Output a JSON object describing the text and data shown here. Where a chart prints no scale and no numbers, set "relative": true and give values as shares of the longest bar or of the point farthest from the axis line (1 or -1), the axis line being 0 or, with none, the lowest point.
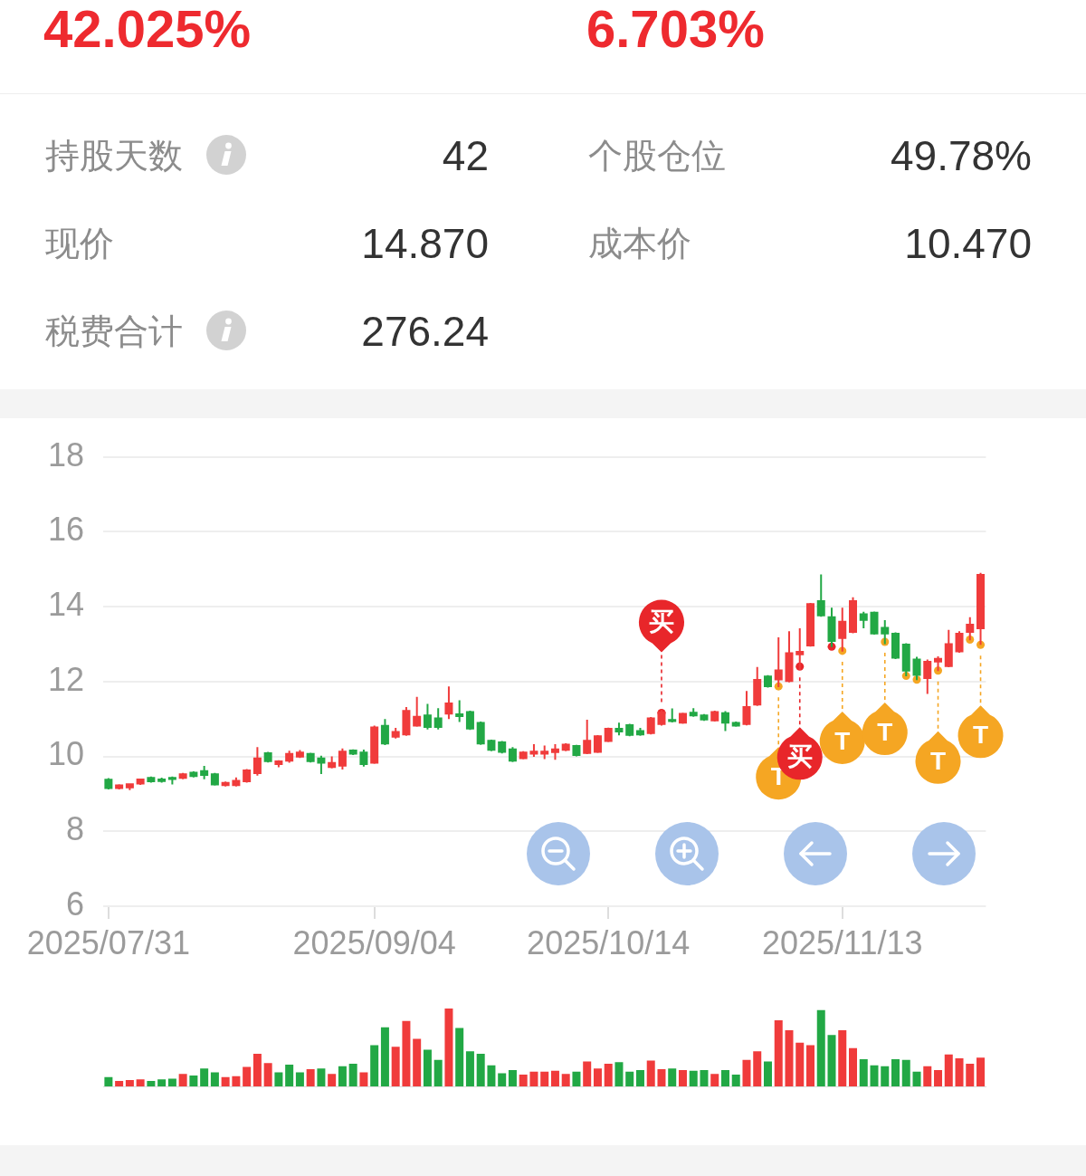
{
  "chart_data": [
    {
      "type": "other",
      "annotations": [
        "42.025%",
        "6.703%",
        "持股天数",
        "42",
        "个股仓位",
        "49.78%",
        "现价",
        "14.870",
        "成本价",
        "10.470",
        "税费合计",
        "276.24"
      ]
    },
    {
      "type": "candlestick",
      "categories": [
        "2025/07/31",
        null,
        null,
        null,
        null,
        null,
        null,
        null,
        null,
        null,
        null,
        null,
        null,
        null,
        null,
        null,
        null,
        null,
        null,
        null,
        null,
        null,
        null,
        null,
        null,
        "2025/09/04",
        null,
        null,
        null,
        null,
        null,
        null,
        null,
        null,
        null,
        null,
        null,
        null,
        null,
        null,
        null,
        null,
        null,
        null,
        null,
        null,
        null,
        "2025/10/14",
        null,
        null,
        null,
        null,
        null,
        null,
        null,
        null,
        null,
        null,
        null,
        null,
        null,
        null,
        null,
        null,
        null,
        null,
        null,
        null,
        null,
        "2025/11/13",
        null,
        null,
        null,
        null,
        null,
        null,
        null,
        null,
        null,
        null,
        null,
        null,
        null
      ],
      "ohlc": [
        [
          9.4,
          9.42,
          9.12,
          9.13
        ],
        [
          9.13,
          9.26,
          9.12,
          9.25
        ],
        [
          9.15,
          9.28,
          9.1,
          9.28
        ],
        [
          9.25,
          9.41,
          9.24,
          9.41
        ],
        [
          9.45,
          9.46,
          9.3,
          9.31
        ],
        [
          9.41,
          9.43,
          9.3,
          9.32
        ],
        [
          9.45,
          9.46,
          9.25,
          9.37
        ],
        [
          9.4,
          9.56,
          9.39,
          9.55
        ],
        [
          9.59,
          9.6,
          9.44,
          9.45
        ],
        [
          9.63,
          9.75,
          9.39,
          9.48
        ],
        [
          9.55,
          9.56,
          9.22,
          9.23
        ],
        [
          9.21,
          9.33,
          9.2,
          9.32
        ],
        [
          9.21,
          9.44,
          9.2,
          9.37
        ],
        [
          9.31,
          9.66,
          9.3,
          9.65
        ],
        [
          9.53,
          10.25,
          9.49,
          9.97
        ],
        [
          10.11,
          10.12,
          9.84,
          9.85
        ],
        [
          9.77,
          9.9,
          9.71,
          9.89
        ],
        [
          9.86,
          10.15,
          9.83,
          10.09
        ],
        [
          9.97,
          10.17,
          9.96,
          10.13
        ],
        [
          10.09,
          10.1,
          9.84,
          9.85
        ],
        [
          9.97,
          10.02,
          9.53,
          9.81
        ],
        [
          9.69,
          10.0,
          9.68,
          9.85
        ],
        [
          9.73,
          10.21,
          9.65,
          10.15
        ],
        [
          10.18,
          10.19,
          10.04,
          10.05
        ],
        [
          10.13,
          10.18,
          9.73,
          9.77
        ],
        [
          9.81,
          10.82,
          9.8,
          10.8
        ],
        [
          10.84,
          11.0,
          10.3,
          10.32
        ],
        [
          10.5,
          10.76,
          10.48,
          10.68
        ],
        [
          10.56,
          11.32,
          10.55,
          11.24
        ],
        [
          10.8,
          11.59,
          10.79,
          11.08
        ],
        [
          11.12,
          11.4,
          10.72,
          10.76
        ],
        [
          11.04,
          11.29,
          10.72,
          10.76
        ],
        [
          11.12,
          11.87,
          11.0,
          11.44
        ],
        [
          11.15,
          11.5,
          10.92,
          11.05
        ],
        [
          11.21,
          11.22,
          10.71,
          10.72
        ],
        [
          10.92,
          10.93,
          10.31,
          10.32
        ],
        [
          10.44,
          10.45,
          10.14,
          10.15
        ],
        [
          10.4,
          10.41,
          10.08,
          10.1
        ],
        [
          10.21,
          10.25,
          9.85,
          9.86
        ],
        [
          9.93,
          10.14,
          9.92,
          10.13
        ],
        [
          10.05,
          10.33,
          9.99,
          10.15
        ],
        [
          10.05,
          10.29,
          9.93,
          10.15
        ],
        [
          10.09,
          10.33,
          9.91,
          10.21
        ],
        [
          10.15,
          10.35,
          10.14,
          10.34
        ],
        [
          10.3,
          10.31,
          10.0,
          10.01
        ],
        [
          10.07,
          10.98,
          10.06,
          10.44
        ],
        [
          10.1,
          10.57,
          10.09,
          10.56
        ],
        [
          10.39,
          10.77,
          10.38,
          10.76
        ],
        [
          10.76,
          10.9,
          10.56,
          10.64
        ],
        [
          10.86,
          10.87,
          10.54,
          10.55
        ],
        [
          10.7,
          10.76,
          10.55,
          10.56
        ],
        [
          10.6,
          11.05,
          10.59,
          11.04
        ],
        [
          10.84,
          11.24,
          10.82,
          11.2
        ],
        [
          11.0,
          11.28,
          10.91,
          10.92
        ],
        [
          10.88,
          11.17,
          10.87,
          11.16
        ],
        [
          11.19,
          11.29,
          11.06,
          11.07
        ],
        [
          11.12,
          11.13,
          10.95,
          10.96
        ],
        [
          10.94,
          11.22,
          10.93,
          11.21
        ],
        [
          11.18,
          11.21,
          10.68,
          10.88
        ],
        [
          10.92,
          10.93,
          10.79,
          10.8
        ],
        [
          10.84,
          11.75,
          10.83,
          11.34
        ],
        [
          11.36,
          12.39,
          11.35,
          12.07
        ],
        [
          12.16,
          12.17,
          11.84,
          11.85
        ],
        [
          12.03,
          13.18,
          11.85,
          12.32
        ],
        [
          11.99,
          13.34,
          11.98,
          12.78
        ],
        [
          12.7,
          13.42,
          12.31,
          12.82
        ],
        [
          12.94,
          14.1,
          12.93,
          14.09
        ],
        [
          14.17,
          14.86,
          13.73,
          13.74
        ],
        [
          13.74,
          13.97,
          12.92,
          13.06
        ],
        [
          13.14,
          13.97,
          12.8,
          13.62
        ],
        [
          13.3,
          14.25,
          13.29,
          14.17
        ],
        [
          13.82,
          13.86,
          13.42,
          13.62
        ],
        [
          13.86,
          13.87,
          13.25,
          13.26
        ],
        [
          13.46,
          13.64,
          13.0,
          13.26
        ],
        [
          13.3,
          13.31,
          12.6,
          12.61
        ],
        [
          13.01,
          13.02,
          12.14,
          12.27
        ],
        [
          12.61,
          12.66,
          12.04,
          12.15
        ],
        [
          12.07,
          12.59,
          11.67,
          12.55
        ],
        [
          12.51,
          12.67,
          12.28,
          12.63
        ],
        [
          12.39,
          13.38,
          12.38,
          13.02
        ],
        [
          12.78,
          13.34,
          12.77,
          13.3
        ],
        [
          13.3,
          13.72,
          13.1,
          13.54
        ],
        [
          13.4,
          14.9,
          12.98,
          14.87
        ]
      ],
      "colors": [
        "#22a845",
        "#f03b3b",
        "#f03b3b",
        "#f03b3b",
        "#22a845",
        "#22a845",
        "#22a845",
        "#f03b3b",
        "#22a845",
        "#22a845",
        "#22a845",
        "#f03b3b",
        "#f03b3b",
        "#f03b3b",
        "#f03b3b",
        "#22a845",
        "#f03b3b",
        "#f03b3b",
        "#f03b3b",
        "#22a845",
        "#22a845",
        "#f03b3b",
        "#f03b3b",
        "#22a845",
        "#22a845",
        "#f03b3b",
        "#22a845",
        "#f03b3b",
        "#f03b3b",
        "#f03b3b",
        "#22a845",
        "#22a845",
        "#f03b3b",
        "#22a845",
        "#22a845",
        "#22a845",
        "#22a845",
        "#22a845",
        "#22a845",
        "#f03b3b",
        "#f03b3b",
        "#f03b3b",
        "#f03b3b",
        "#f03b3b",
        "#22a845",
        "#f03b3b",
        "#f03b3b",
        "#f03b3b",
        "#22a845",
        "#22a845",
        "#22a845",
        "#f03b3b",
        "#f03b3b",
        "#22a845",
        "#f03b3b",
        "#22a845",
        "#22a845",
        "#f03b3b",
        "#22a845",
        "#22a845",
        "#f03b3b",
        "#f03b3b",
        "#22a845",
        "#f03b3b",
        "#f03b3b",
        "#f03b3b",
        "#f03b3b",
        "#22a845",
        "#22a845",
        "#f03b3b",
        "#f03b3b",
        "#22a845",
        "#22a845",
        "#22a845",
        "#22a845",
        "#22a845",
        "#22a845",
        "#f03b3b",
        "#f03b3b",
        "#f03b3b",
        "#f03b3b",
        "#f03b3b",
        "#f03b3b"
      ],
      "ylim": [
        6,
        18
      ],
      "yticks": [
        6,
        8,
        10,
        12,
        14,
        16,
        18
      ],
      "grid": "y",
      "series": [
        {
          "type": "scatter",
          "marker": "circle",
          "values": [
            null,
            null,
            null,
            null,
            null,
            null,
            null,
            null,
            null,
            null,
            null,
            null,
            null,
            null,
            null,
            null,
            null,
            null,
            null,
            null,
            null,
            null,
            null,
            null,
            null,
            null,
            null,
            null,
            null,
            null,
            null,
            null,
            null,
            null,
            null,
            null,
            null,
            null,
            null,
            null,
            null,
            null,
            null,
            null,
            null,
            null,
            null,
            null,
            null,
            null,
            null,
            null,
            11.16,
            null,
            null,
            null,
            null,
            null,
            null,
            null,
            null,
            null,
            null,
            11.87,
            null,
            12.4,
            null,
            null,
            12.93,
            12.82,
            null,
            null,
            null,
            13.06,
            null,
            12.15,
            12.05,
            null,
            12.29,
            null,
            null,
            13.12,
            12.98
          ],
          "colors": [
            null,
            null,
            null,
            null,
            null,
            null,
            null,
            null,
            null,
            null,
            null,
            null,
            null,
            null,
            null,
            null,
            null,
            null,
            null,
            null,
            null,
            null,
            null,
            null,
            null,
            null,
            null,
            null,
            null,
            null,
            null,
            null,
            null,
            null,
            null,
            null,
            null,
            null,
            null,
            null,
            null,
            null,
            null,
            null,
            null,
            null,
            null,
            null,
            null,
            null,
            null,
            null,
            "#e8262a",
            null,
            null,
            null,
            null,
            null,
            null,
            null,
            null,
            null,
            null,
            "#f5a623",
            null,
            "#e8262a",
            null,
            null,
            "#e8262a",
            "#f5a623",
            null,
            null,
            null,
            "#f5a623",
            null,
            "#f5a623",
            "#f5a623",
            null,
            "#f5a623",
            null,
            null,
            "#f5a623",
            "#f5a623"
          ],
          "value_labels": [
            null,
            null,
            null,
            null,
            null,
            null,
            null,
            null,
            null,
            null,
            null,
            null,
            null,
            null,
            null,
            null,
            null,
            null,
            null,
            null,
            null,
            null,
            null,
            null,
            null,
            null,
            null,
            null,
            null,
            null,
            null,
            null,
            null,
            null,
            null,
            null,
            null,
            null,
            null,
            null,
            null,
            null,
            null,
            null,
            null,
            null,
            null,
            null,
            null,
            null,
            null,
            null,
            "买",
            null,
            null,
            null,
            null,
            null,
            null,
            null,
            null,
            null,
            null,
            "T",
            null,
            "买",
            null,
            null,
            null,
            "T",
            null,
            null,
            null,
            "T",
            null,
            null,
            null,
            null,
            "T",
            null,
            null,
            null,
            "T"
          ]
        }
      ]
    },
    {
      "type": "bar",
      "relative": true,
      "tick_labels": false,
      "categories": [
        null,
        null,
        null,
        null,
        null,
        null,
        null,
        null,
        null,
        null,
        null,
        null,
        null,
        null,
        null,
        null,
        null,
        null,
        null,
        null,
        null,
        null,
        null,
        null,
        null,
        null,
        null,
        null,
        null,
        null,
        null,
        null,
        null,
        null,
        null,
        null,
        null,
        null,
        null,
        null,
        null,
        null,
        null,
        null,
        null,
        null,
        null,
        null,
        null,
        null,
        null,
        null,
        null,
        null,
        null,
        null,
        null,
        null,
        null,
        null,
        null,
        null,
        null,
        null,
        null,
        null,
        null,
        null,
        null,
        null,
        null,
        null,
        null,
        null,
        null,
        null,
        null,
        null,
        null,
        null,
        null,
        null,
        null
      ],
      "values": [
        0.12,
        0.07,
        0.08,
        0.09,
        0.07,
        0.09,
        0.1,
        0.16,
        0.14,
        0.23,
        0.18,
        0.12,
        0.13,
        0.25,
        0.42,
        0.3,
        0.18,
        0.28,
        0.18,
        0.22,
        0.23,
        0.16,
        0.26,
        0.29,
        0.18,
        0.53,
        0.76,
        0.51,
        0.84,
        0.61,
        0.47,
        0.34,
        1,
        0.75,
        0.45,
        0.42,
        0.27,
        0.17,
        0.21,
        0.15,
        0.19,
        0.19,
        0.2,
        0.16,
        0.19,
        0.32,
        0.23,
        0.29,
        0.31,
        0.19,
        0.21,
        0.33,
        0.22,
        0.23,
        0.21,
        0.2,
        0.21,
        0.16,
        0.21,
        0.15,
        0.34,
        0.45,
        0.32,
        0.85,
        0.72,
        0.56,
        0.53,
        0.98,
        0.66,
        0.72,
        0.49,
        0.35,
        0.27,
        0.26,
        0.35,
        0.34,
        0.19,
        0.26,
        0.21,
        0.41,
        0.36,
        0.29,
        0.37
      ],
      "colors": [
        "#22a845",
        "#f03b3b",
        "#f03b3b",
        "#f03b3b",
        "#22a845",
        "#22a845",
        "#22a845",
        "#f03b3b",
        "#22a845",
        "#22a845",
        "#22a845",
        "#f03b3b",
        "#f03b3b",
        "#f03b3b",
        "#f03b3b",
        "#f03b3b",
        "#22a845",
        "#22a845",
        "#22a845",
        "#f03b3b",
        "#22a845",
        "#f03b3b",
        "#22a845",
        "#22a845",
        "#f03b3b",
        "#22a845",
        "#22a845",
        "#f03b3b",
        "#f03b3b",
        "#f03b3b",
        "#22a845",
        "#22a845",
        "#f03b3b",
        "#22a845",
        "#22a845",
        "#22a845",
        "#22a845",
        "#22a845",
        "#22a845",
        "#f03b3b",
        "#f03b3b",
        "#f03b3b",
        "#f03b3b",
        "#f03b3b",
        "#22a845",
        "#f03b3b",
        "#f03b3b",
        "#f03b3b",
        "#22a845",
        "#22a845",
        "#22a845",
        "#f03b3b",
        "#f03b3b",
        "#22a845",
        "#f03b3b",
        "#22a845",
        "#22a845",
        "#f03b3b",
        "#22a845",
        "#22a845",
        "#f03b3b",
        "#f03b3b",
        "#22a845",
        "#f03b3b",
        "#f03b3b",
        "#f03b3b",
        "#f03b3b",
        "#22a845",
        "#22a845",
        "#f03b3b",
        "#f03b3b",
        "#22a845",
        "#22a845",
        "#22a845",
        "#22a845",
        "#22a845",
        "#22a845",
        "#f03b3b",
        "#f03b3b",
        "#f03b3b",
        "#f03b3b",
        "#f03b3b",
        "#f03b3b"
      ]
    }
  ]
}
